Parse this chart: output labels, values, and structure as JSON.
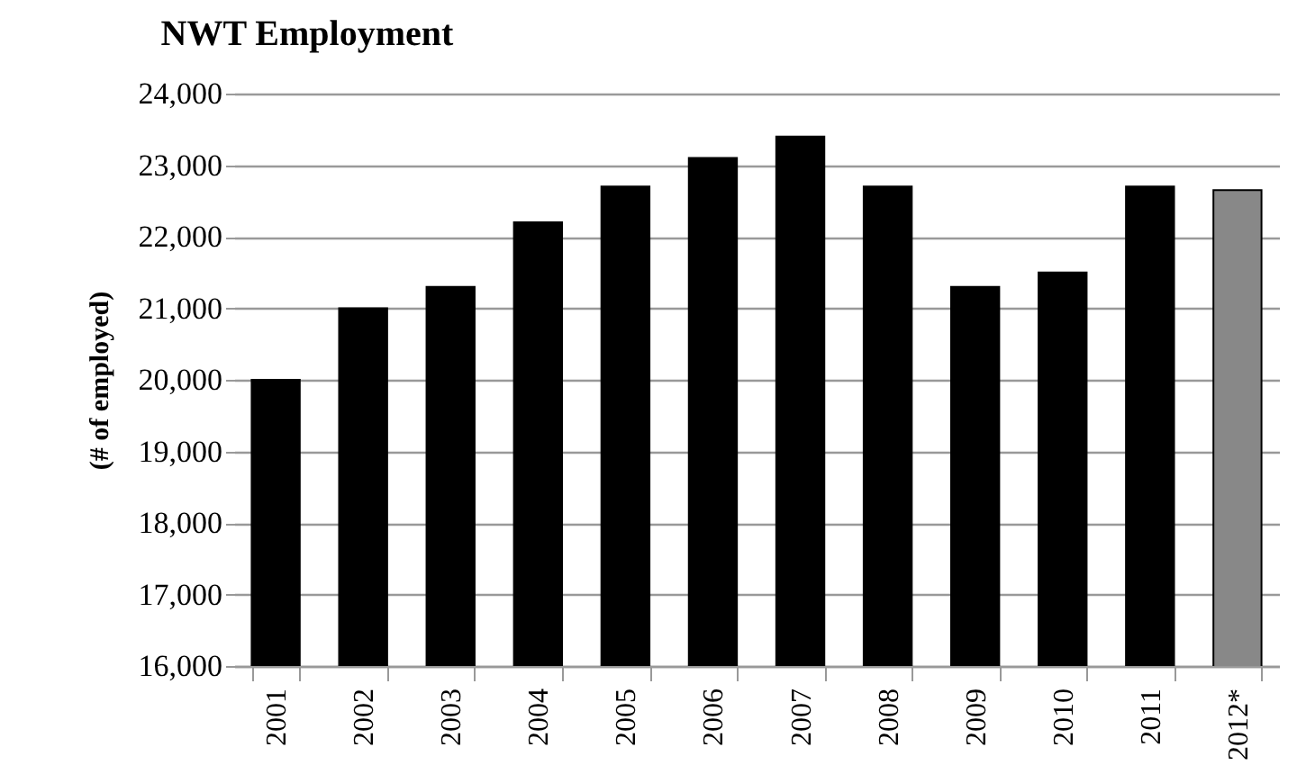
{
  "chart_data": {
    "type": "bar",
    "title": "NWT Employment",
    "ylabel": "(# of employed)",
    "categories": [
      "2001",
      "2002",
      "2003",
      "2004",
      "2005",
      "2006",
      "2007",
      "2008",
      "2009",
      "2010",
      "2011",
      "2012*"
    ],
    "values": [
      20000,
      21000,
      21300,
      22200,
      22700,
      23100,
      23400,
      22700,
      21300,
      21500,
      22700,
      22650
    ],
    "colors": [
      "#000000",
      "#000000",
      "#000000",
      "#000000",
      "#000000",
      "#000000",
      "#000000",
      "#000000",
      "#000000",
      "#000000",
      "#000000",
      "#888888"
    ],
    "ylim": [
      16000,
      24000
    ],
    "yticks": [
      {
        "value": 16000,
        "label": "16,000"
      },
      {
        "value": 17000,
        "label": "17,000"
      },
      {
        "value": 18000,
        "label": "18,000"
      },
      {
        "value": 19000,
        "label": "19,000"
      },
      {
        "value": 20000,
        "label": "20,000"
      },
      {
        "value": 21000,
        "label": "21,000"
      },
      {
        "value": 22000,
        "label": "22,000"
      },
      {
        "value": 23000,
        "label": "23,000"
      },
      {
        "value": 24000,
        "label": "24,000"
      }
    ],
    "grid": "y"
  }
}
